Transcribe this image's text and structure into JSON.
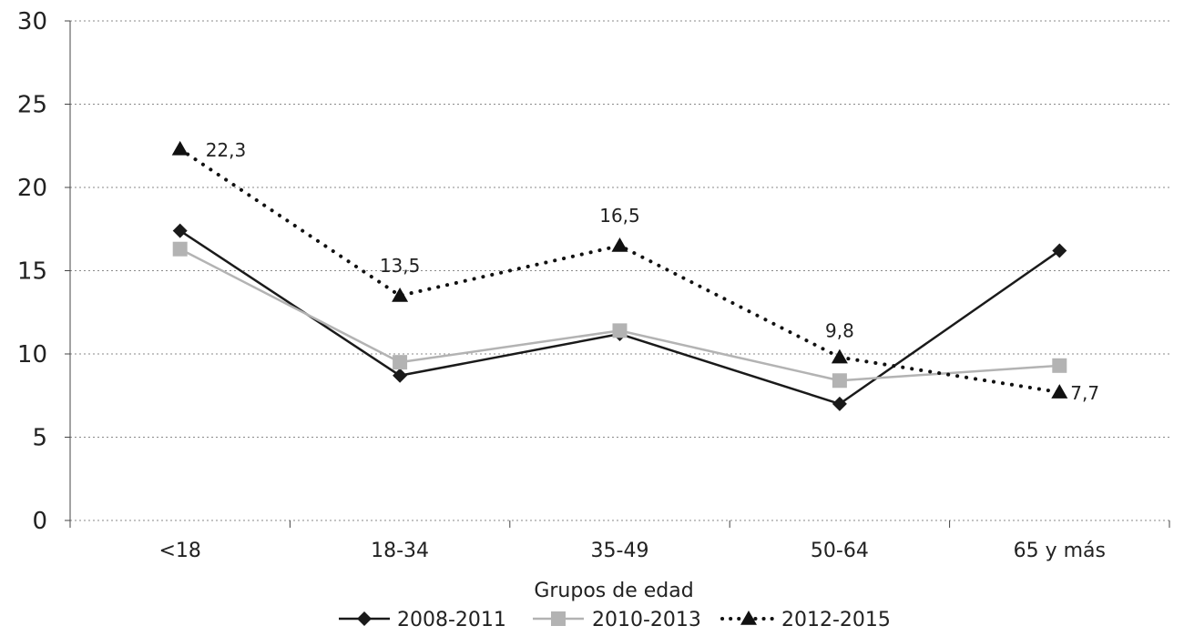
{
  "chart_data": {
    "type": "line",
    "categories": [
      "<18",
      "18-34",
      "35-49",
      "50-64",
      "65 y más"
    ],
    "xlabel": "Grupos de edad",
    "ylabel": "",
    "ylim": [
      0,
      30
    ],
    "yticks": [
      "0",
      "5",
      "10",
      "15",
      "20",
      "25",
      "30"
    ],
    "grid": true,
    "legend_position": "bottom",
    "series": [
      {
        "name": "2008-2011",
        "values": [
          17.4,
          8.7,
          11.2,
          7.0,
          16.2
        ],
        "color": "#1a1a1a",
        "marker": "diamond",
        "line_style": "solid"
      },
      {
        "name": "2010-2013",
        "values": [
          16.3,
          9.5,
          11.4,
          8.4,
          9.3
        ],
        "color": "#b3b3b3",
        "marker": "square",
        "line_style": "solid"
      },
      {
        "name": "2012-2015",
        "values": [
          22.3,
          13.5,
          16.5,
          9.8,
          7.7
        ],
        "labels": [
          "22,3",
          "13,5",
          "16,5",
          "9,8",
          "7,7"
        ],
        "color": "#111111",
        "marker": "triangle",
        "line_style": "dotted"
      }
    ]
  }
}
